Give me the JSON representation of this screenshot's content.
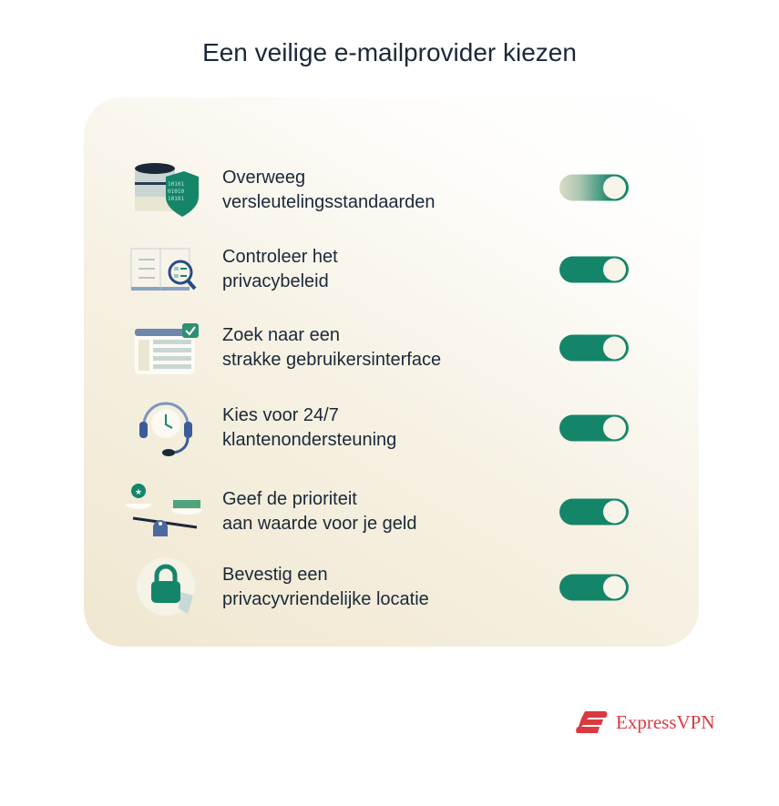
{
  "title": "Een veilige e-mailprovider kiezen",
  "items": [
    {
      "label_line1": "Overweeg",
      "label_line2": "versleutelingsstandaarden",
      "icon": "database-shield-icon",
      "enabled": true
    },
    {
      "label_line1": "Controleer het",
      "label_line2": "privacybeleid",
      "icon": "book-magnifier-icon",
      "enabled": true
    },
    {
      "label_line1": "Zoek naar een",
      "label_line2": "strakke gebruikersinterface",
      "icon": "interface-window-icon",
      "enabled": true
    },
    {
      "label_line1": "Kies voor 24/7",
      "label_line2": "klantenondersteuning",
      "icon": "headset-clock-icon",
      "enabled": true
    },
    {
      "label_line1": "Geef de prioriteit",
      "label_line2": "aan waarde voor je geld",
      "icon": "balance-scale-icon",
      "enabled": true
    },
    {
      "label_line1": "Bevestig een",
      "label_line2": "privacyvriendelijke locatie",
      "icon": "globe-lock-icon",
      "enabled": true
    }
  ],
  "colors": {
    "accent": "#158569",
    "text": "#1b2838",
    "brand": "#da3940"
  },
  "brand": {
    "name": "ExpressVPN"
  }
}
